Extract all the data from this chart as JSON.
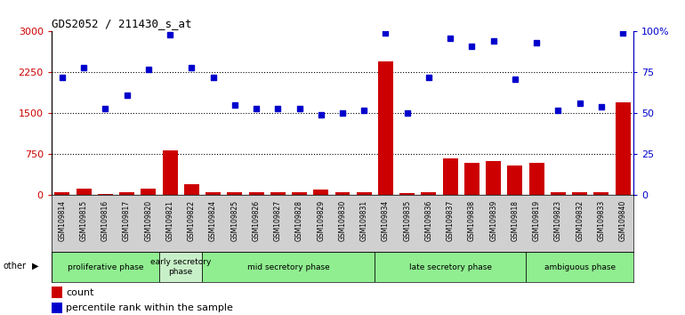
{
  "title": "GDS2052 / 211430_s_at",
  "samples": [
    "GSM109814",
    "GSM109815",
    "GSM109816",
    "GSM109817",
    "GSM109820",
    "GSM109821",
    "GSM109822",
    "GSM109824",
    "GSM109825",
    "GSM109826",
    "GSM109827",
    "GSM109828",
    "GSM109829",
    "GSM109830",
    "GSM109831",
    "GSM109834",
    "GSM109835",
    "GSM109836",
    "GSM109837",
    "GSM109838",
    "GSM109839",
    "GSM109818",
    "GSM109819",
    "GSM109823",
    "GSM109832",
    "GSM109833",
    "GSM109840"
  ],
  "counts": [
    50,
    130,
    25,
    60,
    120,
    830,
    200,
    60,
    50,
    50,
    50,
    50,
    110,
    50,
    50,
    2450,
    40,
    60,
    670,
    590,
    630,
    540,
    590,
    60,
    50,
    60,
    1700
  ],
  "percentiles": [
    72,
    78,
    53,
    61,
    77,
    98,
    78,
    72,
    55,
    53,
    53,
    53,
    49,
    50,
    52,
    99,
    50,
    72,
    96,
    91,
    94,
    71,
    93,
    52,
    56,
    54,
    99
  ],
  "phase_groups": [
    {
      "label": "proliferative phase",
      "start": 0,
      "end": 5,
      "color": "#90EE90"
    },
    {
      "label": "early secretory\nphase",
      "start": 5,
      "end": 7,
      "color": "#c8f0c8"
    },
    {
      "label": "mid secretory phase",
      "start": 7,
      "end": 15,
      "color": "#90EE90"
    },
    {
      "label": "late secretory phase",
      "start": 15,
      "end": 22,
      "color": "#90EE90"
    },
    {
      "label": "ambiguous phase",
      "start": 22,
      "end": 27,
      "color": "#90EE90"
    }
  ],
  "bar_color": "#cc0000",
  "dot_color": "#0000cc",
  "left_ylim": [
    0,
    3000
  ],
  "right_ylim": [
    0,
    100
  ],
  "left_yticks": [
    0,
    750,
    1500,
    2250,
    3000
  ],
  "right_yticks": [
    0,
    25,
    50,
    75,
    100
  ],
  "gridlines": [
    750,
    1500,
    2250
  ],
  "other_label": "other"
}
